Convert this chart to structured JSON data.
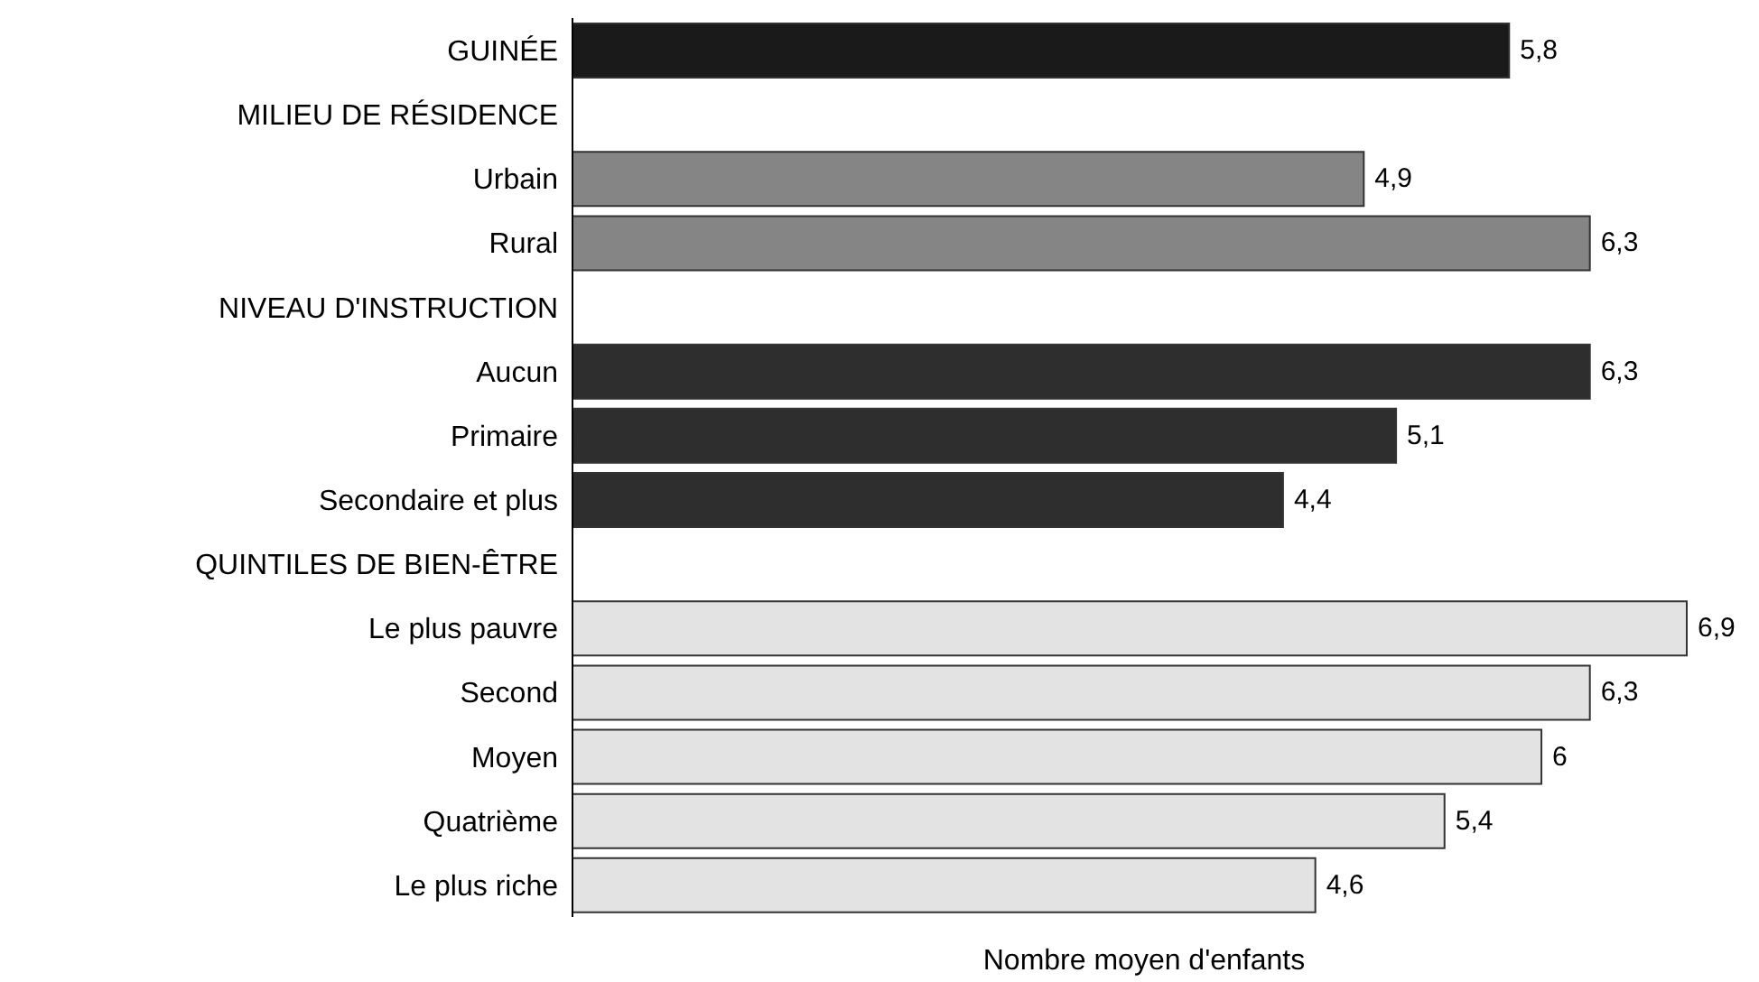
{
  "chart_data": {
    "type": "bar",
    "orientation": "horizontal",
    "xlabel": "Nombre moyen d'enfants",
    "categories": [
      "GUINÉE",
      "MILIEU DE RÉSIDENCE",
      "Urbain",
      "Rural",
      "NIVEAU D'INSTRUCTION",
      "Aucun",
      "Primaire",
      "Secondaire et plus",
      "QUINTILES DE BIEN-ÊTRE",
      "Le plus pauvre",
      "Second",
      "Moyen",
      "Quatrième",
      "Le plus riche"
    ],
    "values": [
      5.8,
      null,
      4.9,
      6.3,
      null,
      6.3,
      5.1,
      4.4,
      null,
      6.9,
      6.3,
      6,
      5.4,
      4.6
    ],
    "value_labels": [
      "5,8",
      null,
      "4,9",
      "6,3",
      null,
      "6,3",
      "5,1",
      "4,4",
      null,
      "6,9",
      "6,3",
      "6",
      "5,4",
      "4,6"
    ],
    "colors": [
      "#1a1a1a",
      null,
      "#858585",
      "#858585",
      null,
      "#2e2e2e",
      "#2e2e2e",
      "#2e2e2e",
      null,
      "#e3e3e3",
      "#e3e3e3",
      "#e3e3e3",
      "#e3e3e3",
      "#e3e3e3"
    ],
    "tick_labels": "y"
  }
}
